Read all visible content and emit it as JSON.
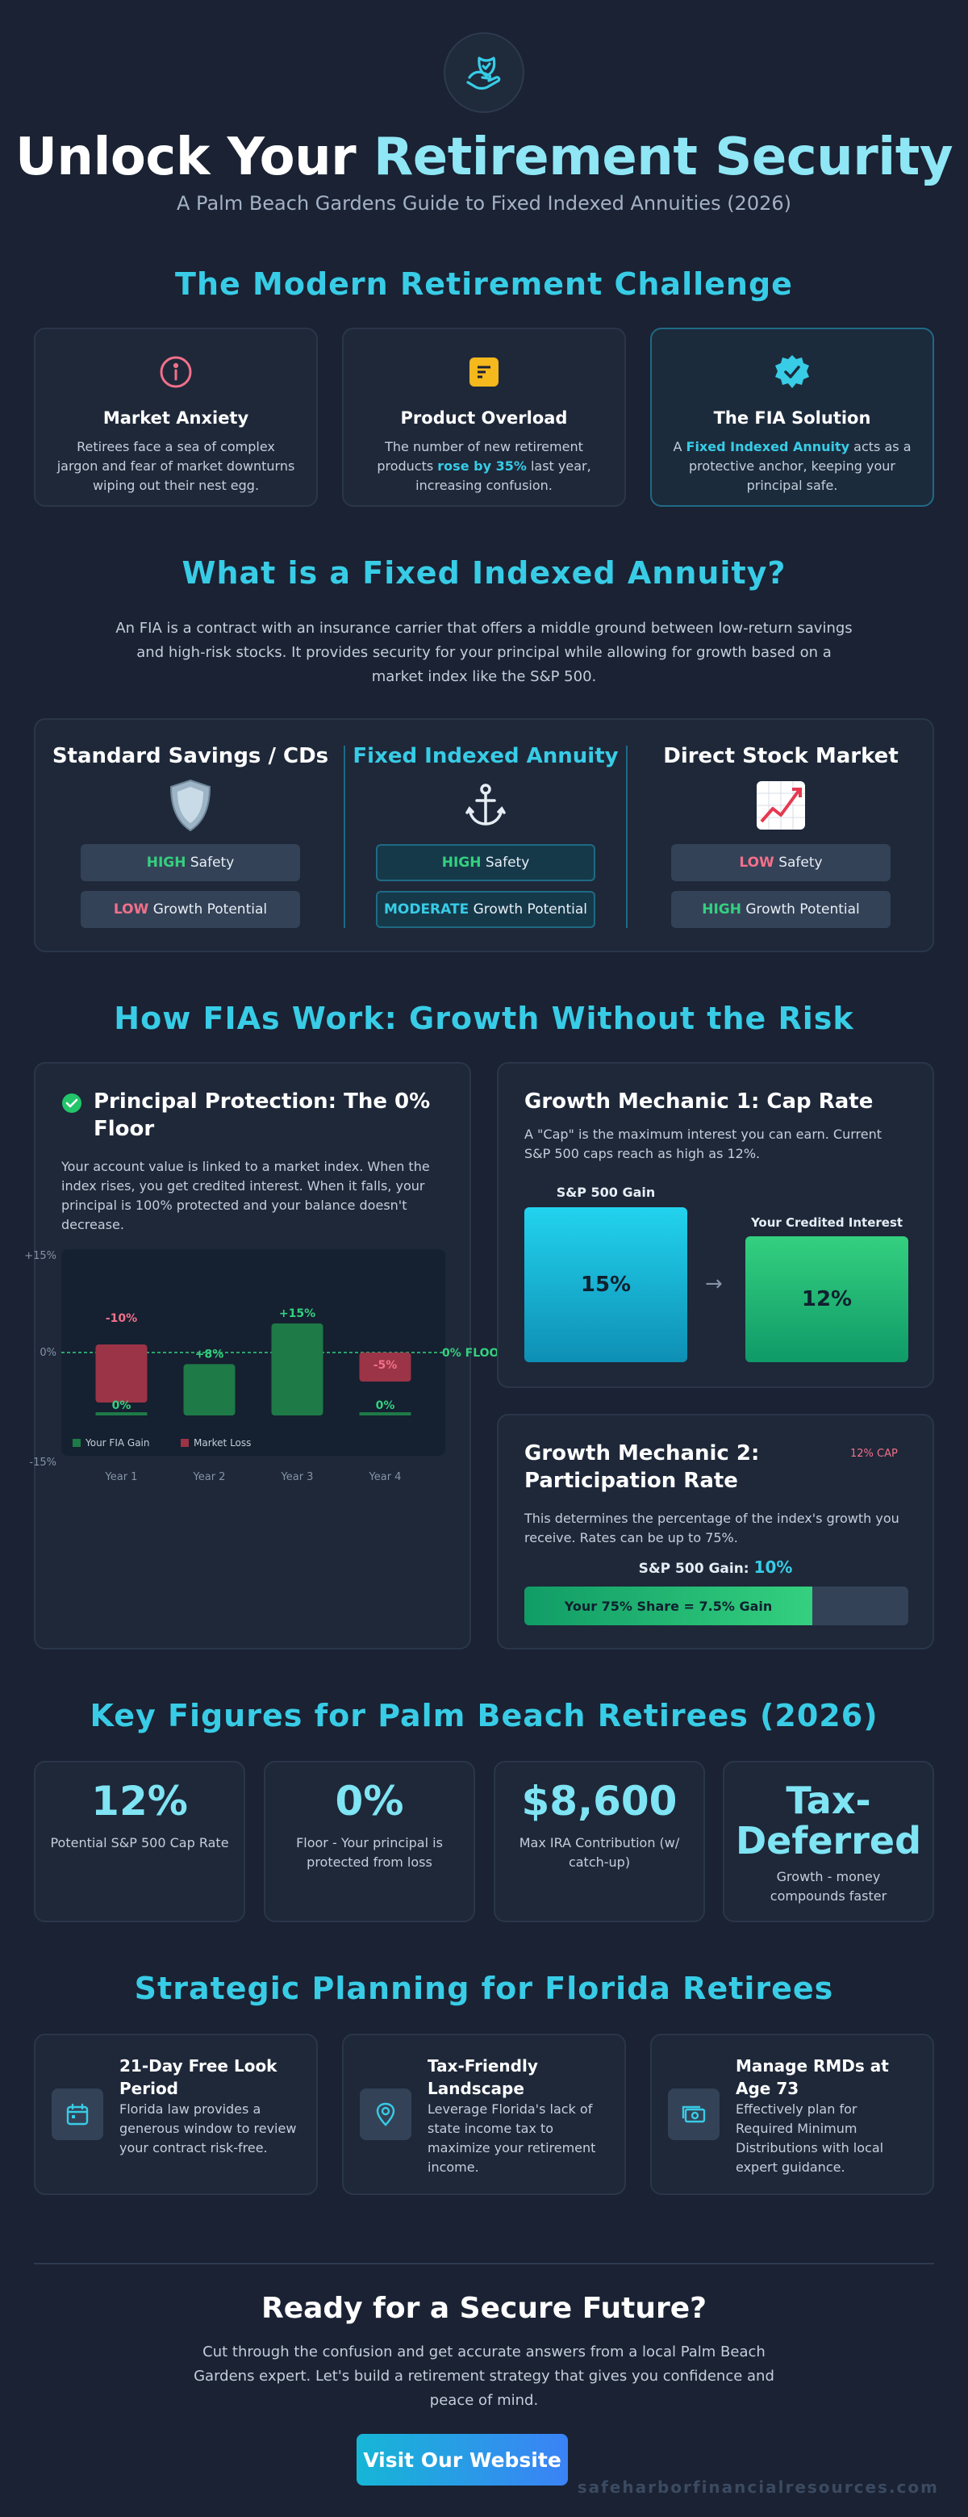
{
  "header": {
    "logo_icon": "hand-shield-icon",
    "title_part1": "Unlock Your",
    "title_part2": "Retirement Security",
    "subtitle": "A Palm Beach Gardens Guide to Fixed Indexed Annuities (2026)"
  },
  "challenge": {
    "heading": "The Modern Retirement Challenge",
    "cards": [
      {
        "icon": "info-circle-icon",
        "title": "Market Anxiety",
        "text": "Retirees face a sea of complex jargon and fear of market downturns wiping out their nest egg."
      },
      {
        "icon": "document-icon",
        "title": "Product Overload",
        "text_before": "The number of new retirement products ",
        "highlight": "rose by 35%",
        "text_after": " last year, increasing confusion."
      },
      {
        "icon": "badge-check-icon",
        "title": "The FIA Solution",
        "text_before": "A ",
        "highlight": "Fixed Indexed Annuity",
        "text_after": " acts as a protective anchor, keeping your principal safe."
      }
    ]
  },
  "what_is": {
    "heading": "What is a Fixed Indexed Annuity?",
    "text": "An FIA is a contract with an insurance carrier that offers a middle ground between low-return savings and high-risk stocks. It provides security for your principal while allowing for growth based on a market index like the S&P 500.",
    "columns": [
      {
        "title": "Standard Savings / CDs",
        "icon": "shield-emoji-icon",
        "safety_level": "HIGH",
        "safety_label": "Safety",
        "growth_level": "LOW",
        "growth_label": "Growth Potential"
      },
      {
        "title": "Fixed Indexed Annuity",
        "icon": "anchor-icon",
        "safety_level": "HIGH",
        "safety_label": "Safety",
        "growth_level": "MODERATE",
        "growth_label": "Growth Potential"
      },
      {
        "title": "Direct Stock Market",
        "icon": "chart-increasing-icon",
        "safety_level": "LOW",
        "safety_label": "Safety",
        "growth_level": "HIGH",
        "growth_label": "Growth Potential"
      }
    ]
  },
  "how": {
    "heading": "How FIAs Work: Growth Without the Risk",
    "principal": {
      "icon": "check-circle-icon",
      "title": "Principal Protection: The 0% Floor",
      "text": "Your account value is linked to a market index. When the index rises, you get credited interest. When it falls, your principal is 100% protected and your balance doesn't decrease.",
      "floor_label": "0% FLOOR",
      "legend_gain": "Your FIA Gain",
      "legend_loss": "Market Loss"
    },
    "cap": {
      "title": "Growth Mechanic 1: Cap Rate",
      "text": "A \"Cap\" is the maximum interest you can earn. Current S&P 500 caps reach as high as 12%.",
      "left_label": "S&P 500 Gain",
      "left_value": "15%",
      "right_label": "Your Credited Interest",
      "right_value": "12%",
      "arrow": "→",
      "cap_tag": "12% CAP"
    },
    "participation": {
      "title": "Growth Mechanic 2: Participation Rate",
      "text": "This determines the percentage of the index's growth you receive. Rates can be up to 75%.",
      "gain_label": "S&P 500 Gain:",
      "gain_value": "10%",
      "bar_label": "Your 75% Share = 7.5% Gain",
      "share": 0.75
    }
  },
  "chart_data": {
    "type": "bar",
    "categories": [
      "Year 1",
      "Year 2",
      "Year 3",
      "Year 4"
    ],
    "series": [
      {
        "name": "Market Loss",
        "values": [
          -10,
          null,
          null,
          -5
        ],
        "color": "#9b3446"
      },
      {
        "name": "Your FIA Gain",
        "values": [
          0,
          8,
          15,
          0
        ],
        "color": "#1e7a47"
      }
    ],
    "market_labels": [
      "-10%",
      "+8%",
      "+15%",
      "-5%"
    ],
    "fia_labels": [
      "0%",
      "",
      "",
      "0%"
    ],
    "ylim": [
      -15,
      15
    ],
    "y_ticks": [
      "+15%",
      "0%",
      "-15%"
    ],
    "legend": "bottom-left"
  },
  "figures": {
    "heading": "Key Figures for Palm Beach Retirees (2026)",
    "items": [
      {
        "value": "12%",
        "label": "Potential S&P 500 Cap Rate"
      },
      {
        "value": "0%",
        "label": "Floor - Your principal is protected from loss"
      },
      {
        "value": "$8,600",
        "label": "Max IRA Contribution (w/ catch-up)"
      },
      {
        "value": "Tax-Deferred",
        "label": "Growth - money compounds faster"
      }
    ]
  },
  "strategic": {
    "heading": "Strategic Planning for Florida Retirees",
    "items": [
      {
        "icon": "calendar-icon",
        "title": "21-Day Free Look Period",
        "text": "Florida law provides a generous window to review your contract risk-free."
      },
      {
        "icon": "map-pin-icon",
        "title": "Tax-Friendly Landscape",
        "text": "Leverage Florida's lack of state income tax to maximize your retirement income."
      },
      {
        "icon": "money-icon",
        "title": "Manage RMDs at Age 73",
        "text": "Effectively plan for Required Minimum Distributions with local expert guidance."
      }
    ]
  },
  "cta": {
    "title": "Ready for a Secure Future?",
    "text": "Cut through the confusion and get accurate answers from a local Palm Beach Gardens expert. Let's build a retirement strategy that gives you confidence and peace of mind.",
    "button": "Visit Our Website"
  },
  "footer": {
    "url": "safeharborfinancialresources.com"
  },
  "colors": {
    "accent": "#38cce6",
    "background": "#1a2233",
    "gain": "#34d07f",
    "loss": "#f2708a"
  }
}
